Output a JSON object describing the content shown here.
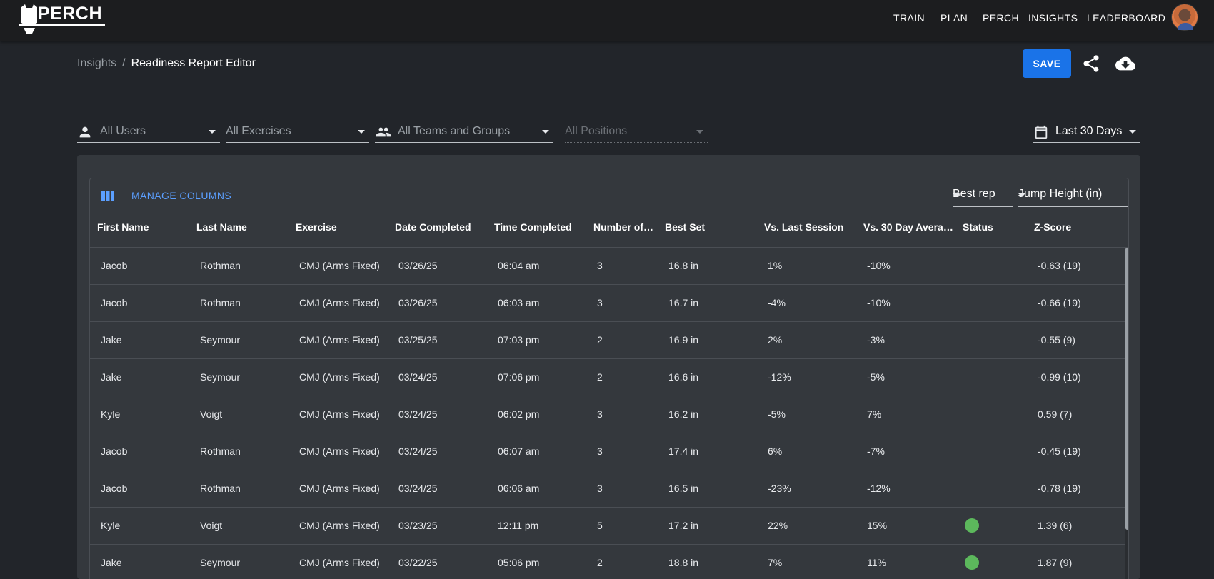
{
  "brand": {
    "logo_text": "PERCH"
  },
  "nav": {
    "items": [
      {
        "label": "TRAIN"
      },
      {
        "label": "PLAN"
      },
      {
        "label": "PERCH"
      },
      {
        "label": "INSIGHTS"
      },
      {
        "label": "LEADERBOARD"
      }
    ]
  },
  "breadcrumb": {
    "parent": "Insights",
    "separator": "/",
    "current": "Readiness Report Editor"
  },
  "actions": {
    "save_label": "SAVE",
    "share_icon": "share-icon",
    "download_icon": "cloud-download-icon",
    "accent_color": "#1a73e8"
  },
  "filters": {
    "users": "All Users",
    "exercises": "All Exercises",
    "teams": "All Teams and Groups",
    "positions": "All Positions",
    "date_range": "Last 30 Days"
  },
  "grid": {
    "manage_columns_label": "MANAGE COLUMNS",
    "rep_select": "Best rep",
    "metric_select": "Jump Height (in)",
    "columns": [
      "First Name",
      "Last Name",
      "Exercise",
      "Date Completed",
      "Time Completed",
      "Number of…",
      "Best Set",
      "Vs. Last Session",
      "Vs. 30 Day Avera…",
      "Status",
      "Z-Score"
    ],
    "status_color": "#5cb85c",
    "rows": [
      {
        "first": "Jacob",
        "last": "Rothman",
        "exercise": "CMJ (Arms Fixed)",
        "date": "03/26/25",
        "time": "06:04 am",
        "num": "3",
        "best": "16.8 in",
        "vs_last": "1%",
        "vs_avg": "-10%",
        "status": false,
        "z": "-0.63 (19)"
      },
      {
        "first": "Jacob",
        "last": "Rothman",
        "exercise": "CMJ (Arms Fixed)",
        "date": "03/26/25",
        "time": "06:03 am",
        "num": "3",
        "best": "16.7 in",
        "vs_last": "-4%",
        "vs_avg": "-10%",
        "status": false,
        "z": "-0.66 (19)"
      },
      {
        "first": "Jake",
        "last": "Seymour",
        "exercise": "CMJ (Arms Fixed)",
        "date": "03/25/25",
        "time": "07:03 pm",
        "num": "2",
        "best": "16.9 in",
        "vs_last": "2%",
        "vs_avg": "-3%",
        "status": false,
        "z": "-0.55 (9)"
      },
      {
        "first": "Jake",
        "last": "Seymour",
        "exercise": "CMJ (Arms Fixed)",
        "date": "03/24/25",
        "time": "07:06 pm",
        "num": "2",
        "best": "16.6 in",
        "vs_last": "-12%",
        "vs_avg": "-5%",
        "status": false,
        "z": "-0.99 (10)"
      },
      {
        "first": "Kyle",
        "last": "Voigt",
        "exercise": "CMJ (Arms Fixed)",
        "date": "03/24/25",
        "time": "06:02 pm",
        "num": "3",
        "best": "16.2 in",
        "vs_last": "-5%",
        "vs_avg": "7%",
        "status": false,
        "z": "0.59 (7)"
      },
      {
        "first": "Jacob",
        "last": "Rothman",
        "exercise": "CMJ (Arms Fixed)",
        "date": "03/24/25",
        "time": "06:07 am",
        "num": "3",
        "best": "17.4 in",
        "vs_last": "6%",
        "vs_avg": "-7%",
        "status": false,
        "z": "-0.45 (19)"
      },
      {
        "first": "Jacob",
        "last": "Rothman",
        "exercise": "CMJ (Arms Fixed)",
        "date": "03/24/25",
        "time": "06:06 am",
        "num": "3",
        "best": "16.5 in",
        "vs_last": "-23%",
        "vs_avg": "-12%",
        "status": false,
        "z": "-0.78 (19)"
      },
      {
        "first": "Kyle",
        "last": "Voigt",
        "exercise": "CMJ (Arms Fixed)",
        "date": "03/23/25",
        "time": "12:11 pm",
        "num": "5",
        "best": "17.2 in",
        "vs_last": "22%",
        "vs_avg": "15%",
        "status": true,
        "z": "1.39 (6)"
      },
      {
        "first": "Jake",
        "last": "Seymour",
        "exercise": "CMJ (Arms Fixed)",
        "date": "03/22/25",
        "time": "05:06 pm",
        "num": "2",
        "best": "18.8 in",
        "vs_last": "7%",
        "vs_avg": "11%",
        "status": true,
        "z": "1.87 (9)"
      }
    ]
  }
}
